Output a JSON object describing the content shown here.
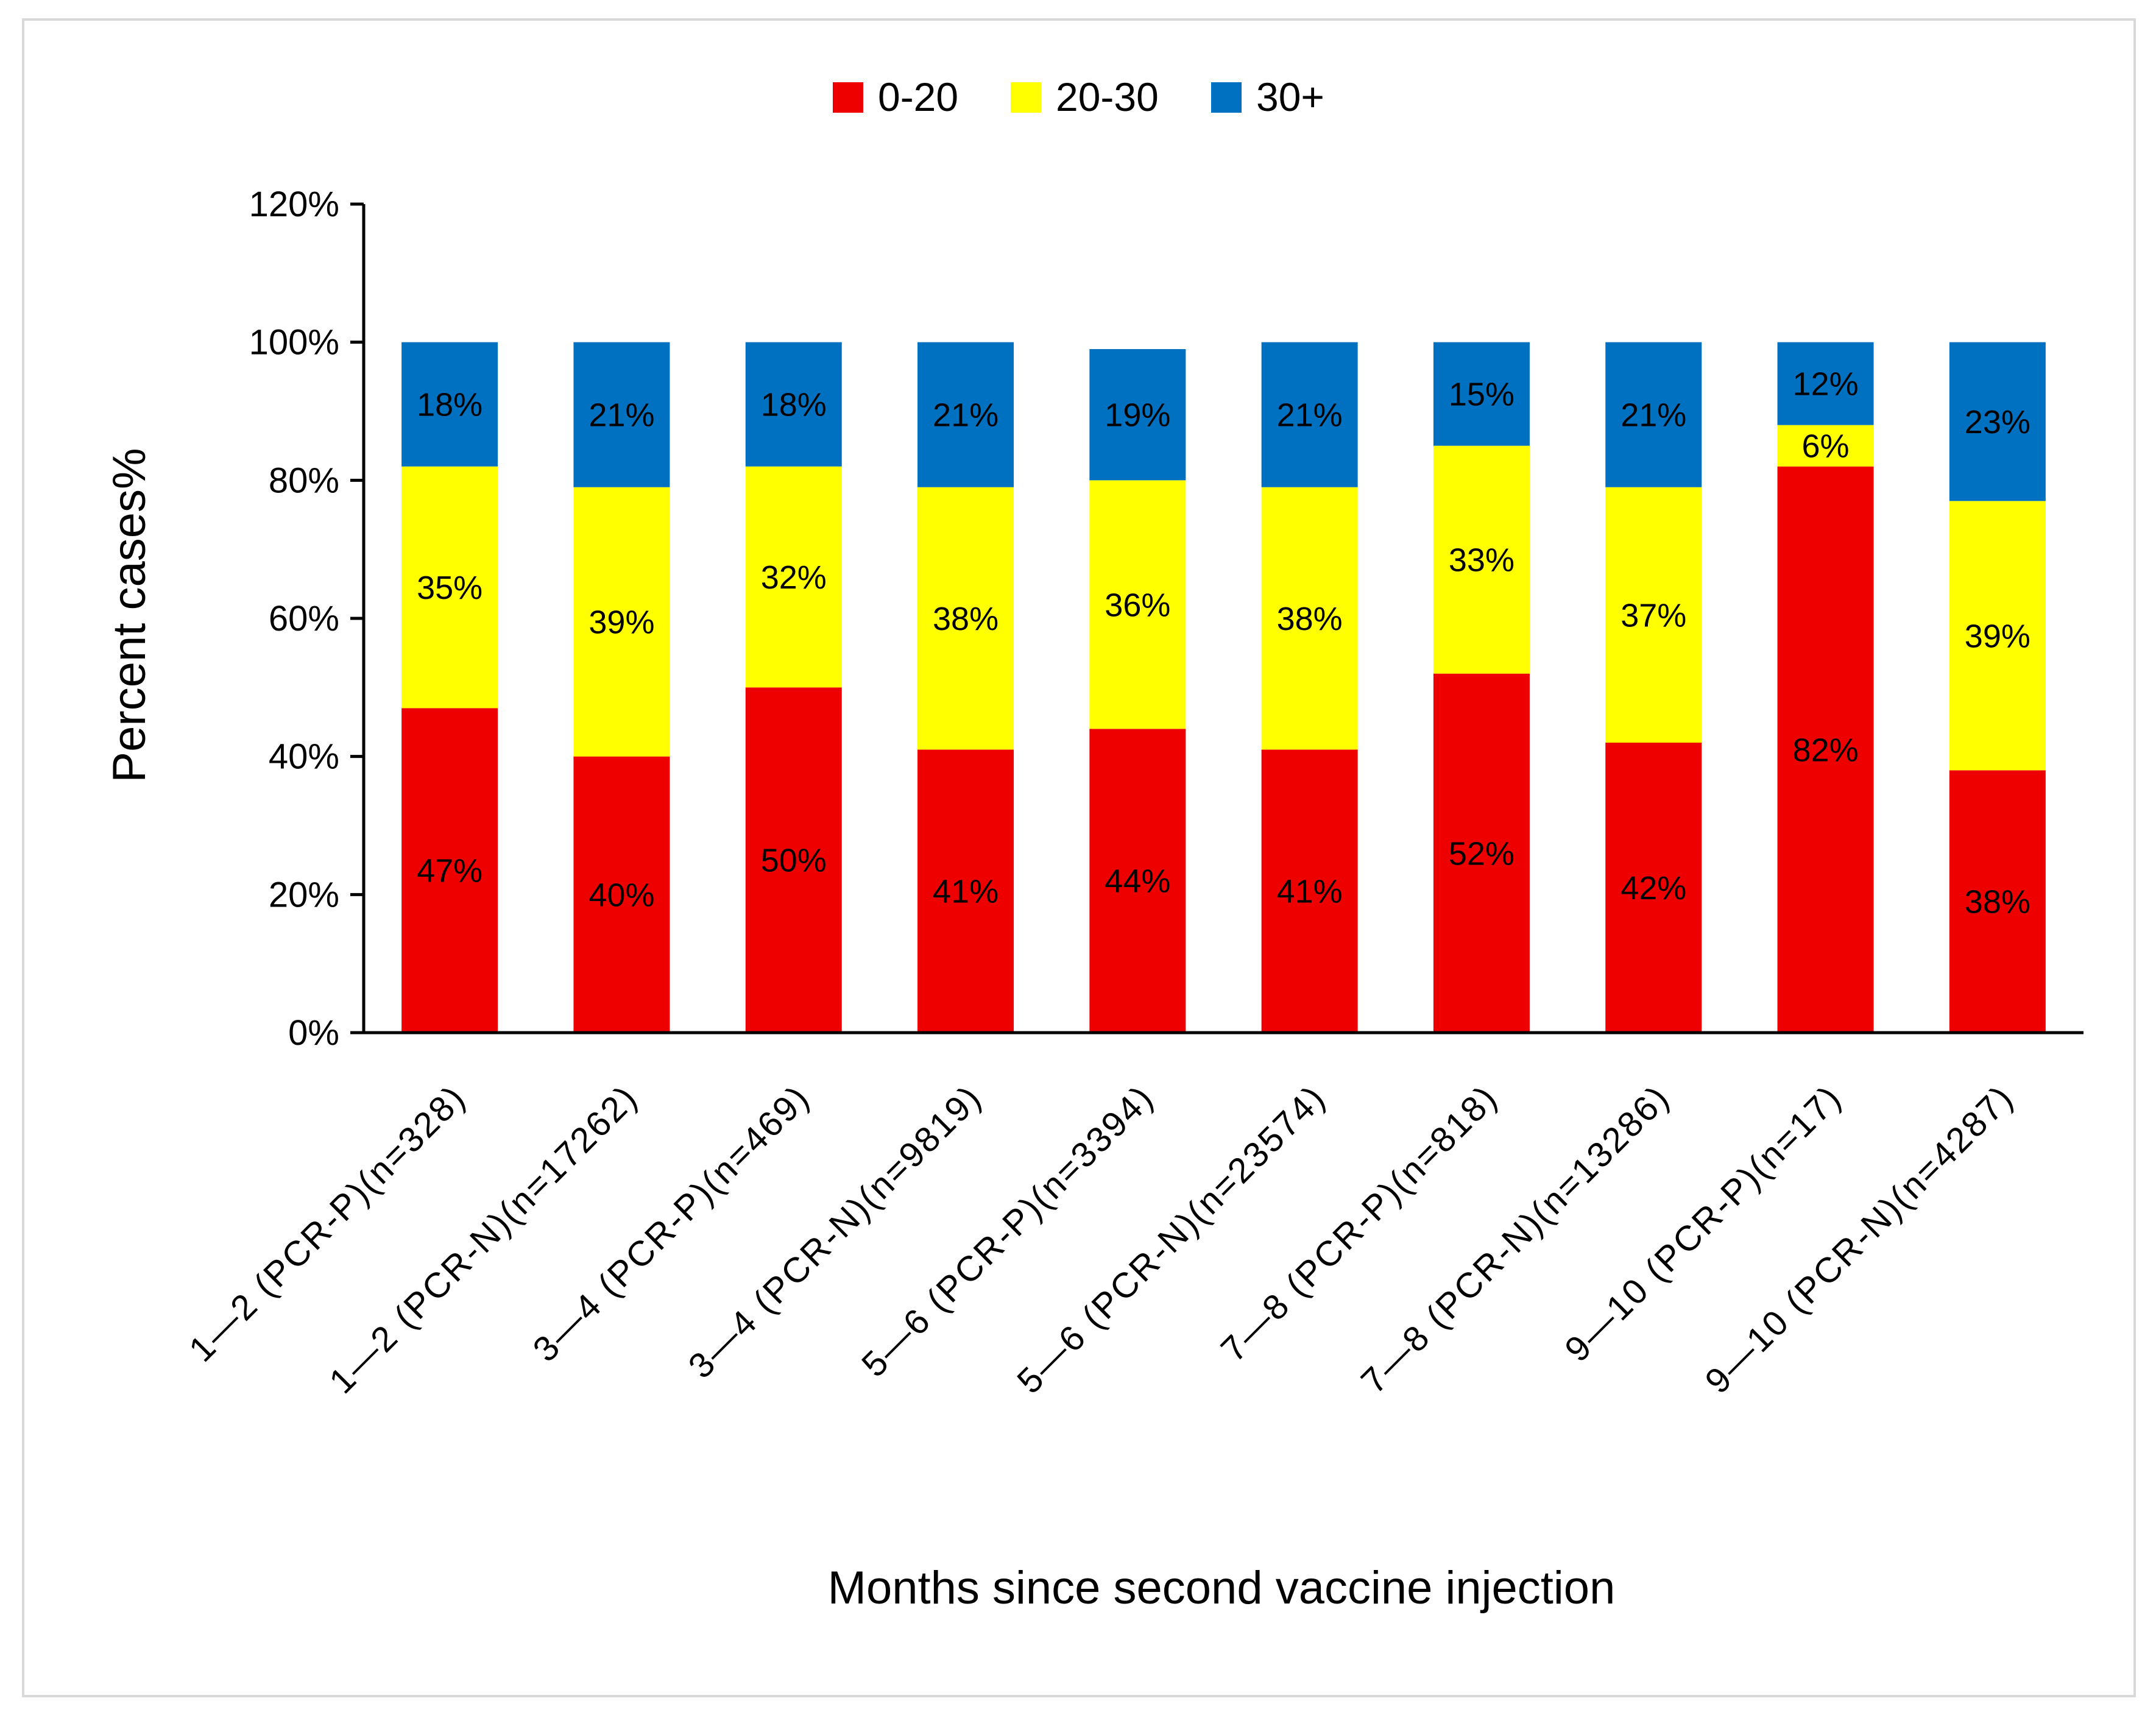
{
  "chart_data": {
    "type": "bar",
    "stacked": true,
    "title": "",
    "xlabel": "Months since second vaccine injection",
    "ylabel": "Percent cases%",
    "ylim": [
      0,
      120
    ],
    "yticks": [
      "0%",
      "20%",
      "40%",
      "60%",
      "80%",
      "100%",
      "120%"
    ],
    "legend_position": "top-center",
    "categories": [
      "1—2 (PCR-P)(n=328)",
      "1—2 (PCR-N)(n=17262)",
      "3—4 (PCR-P)(n=469)",
      "3—4 (PCR-N)(n=9819)",
      "5—6 (PCR-P)(n=3394)",
      "5—6 (PCR-N)(n=23574)",
      "7—8 (PCR-P)(n=818)",
      "7—8 (PCR-N)(n=13286)",
      "9—10 (PCR-P)(n=17)",
      "9—10 (PCR-N)(n=4287)"
    ],
    "series": [
      {
        "name": "0-20",
        "color": "#ee0000",
        "values": [
          47,
          40,
          50,
          41,
          44,
          41,
          52,
          42,
          82,
          38
        ],
        "labels": [
          "47%",
          "40%",
          "50%",
          "41%",
          "44%",
          "41%",
          "52%",
          "42%",
          "82%",
          "38%"
        ]
      },
      {
        "name": "20-30",
        "color": "#ffff00",
        "values": [
          35,
          39,
          32,
          38,
          36,
          38,
          33,
          37,
          6,
          39
        ],
        "labels": [
          "35%",
          "39%",
          "32%",
          "38%",
          "36%",
          "38%",
          "33%",
          "37%",
          "6%",
          "39%"
        ]
      },
      {
        "name": "30+",
        "color": "#0070c0",
        "values": [
          18,
          21,
          18,
          21,
          19,
          21,
          15,
          21,
          12,
          23
        ],
        "labels": [
          "18%",
          "21%",
          "18%",
          "21%",
          "19%",
          "21%",
          "15%",
          "21%",
          "12%",
          "23%"
        ]
      }
    ]
  }
}
